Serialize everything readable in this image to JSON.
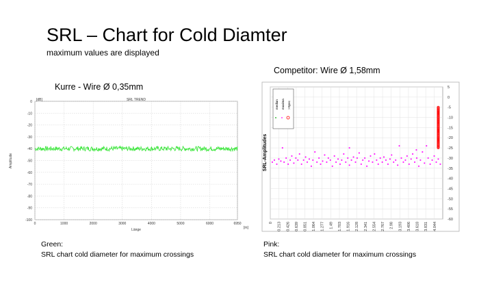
{
  "slide": {
    "title": "SRL – Chart for Cold Diamter",
    "subtitle": "maximum values are displayed"
  },
  "left_panel": {
    "title": "Kurre - Wire Ø 0,35mm",
    "caption_line1": "Green:",
    "caption_line2": "SRL chart cold diameter for maximum crossings"
  },
  "right_panel": {
    "title": "Competitor: Wire Ø 1,58mm",
    "caption_line1": "Pink:",
    "caption_line2": "SRL chart cold diameter for maximum crossings"
  },
  "colors": {
    "green_series": "#39e639",
    "pink_series": "#ff00ff",
    "red_spec": "#ff0000",
    "grid": "#cfcfcf"
  },
  "chart_data": [
    {
      "type": "line",
      "title": "SRL TREND",
      "xlabel": "Länge",
      "ylabel": "Amplitude",
      "y_unit_label": "[dB]",
      "x_unit_label": "[m]",
      "xlim": [
        0,
        6950
      ],
      "ylim": [
        -100,
        0
      ],
      "x_ticks": [
        "0",
        "1000",
        "2000",
        "3000",
        "4000",
        "5000",
        "6000",
        "6950"
      ],
      "y_ticks": [
        "0",
        "-10",
        "-20",
        "-30",
        "-40",
        "-50",
        "-60",
        "-70",
        "-80",
        "-90",
        "-100"
      ],
      "grid": true,
      "series": [
        {
          "color": "#39e639",
          "x_range": [
            0,
            6950
          ],
          "values_approx": -40,
          "noise_range": [
            -42,
            -38
          ]
        }
      ]
    },
    {
      "type": "scatter",
      "ylabel": "SRL-Amplitudes",
      "ylim": [
        -60,
        5
      ],
      "y_axis_position": "right",
      "y_ticks": [
        "5",
        "0",
        "-5",
        "-10",
        "-15",
        "-20",
        "-25",
        "-30",
        "-35",
        "-40",
        "-45",
        "-50",
        "-55",
        "-60"
      ],
      "x_ticks": [
        "0",
        "0.213",
        "0.426",
        "0.639",
        "0.851",
        "1.064",
        "1.277",
        "1.49",
        "1.703",
        "1.916",
        "2.128",
        "2.341",
        "2.554",
        "2.767",
        "2.98",
        "3.193",
        "3.406",
        "3.618",
        "3.831",
        "4.044"
      ],
      "xlim": [
        0,
        4.25
      ],
      "grid": true,
      "legend": {
        "position": "top-left",
        "entries": [
          "median",
          "maxima",
          ">Spec"
        ]
      },
      "series": [
        {
          "name": "maxima",
          "color": "#ff00ff",
          "points": [
            [
              0.05,
              -32
            ],
            [
              0.1,
              -31
            ],
            [
              0.16,
              -33
            ],
            [
              0.21,
              -30.5
            ],
            [
              0.26,
              -31.5
            ],
            [
              0.3,
              -25
            ],
            [
              0.34,
              -32
            ],
            [
              0.39,
              -30
            ],
            [
              0.44,
              -33
            ],
            [
              0.49,
              -31
            ],
            [
              0.53,
              -29
            ],
            [
              0.58,
              -32.5
            ],
            [
              0.63,
              -30
            ],
            [
              0.68,
              -31
            ],
            [
              0.72,
              -28
            ],
            [
              0.77,
              -33
            ],
            [
              0.82,
              -31
            ],
            [
              0.87,
              -29.5
            ],
            [
              0.91,
              -32
            ],
            [
              0.96,
              -30.5
            ],
            [
              1.01,
              -34
            ],
            [
              1.05,
              -31
            ],
            [
              1.1,
              -27
            ],
            [
              1.15,
              -32
            ],
            [
              1.2,
              -30
            ],
            [
              1.24,
              -33
            ],
            [
              1.29,
              -31.5
            ],
            [
              1.34,
              -28.5
            ],
            [
              1.39,
              -32
            ],
            [
              1.43,
              -30
            ],
            [
              1.48,
              -31
            ],
            [
              1.53,
              -34
            ],
            [
              1.58,
              -29
            ],
            [
              1.62,
              -32
            ],
            [
              1.67,
              -30.5
            ],
            [
              1.72,
              -33
            ],
            [
              1.76,
              -31
            ],
            [
              1.81,
              -28
            ],
            [
              1.86,
              -32
            ],
            [
              1.91,
              -30
            ],
            [
              1.95,
              -33.5
            ],
            [
              2.0,
              -31
            ],
            [
              2.05,
              -29.5
            ],
            [
              2.1,
              -32
            ],
            [
              2.14,
              -30
            ],
            [
              2.19,
              -27.5
            ],
            [
              2.24,
              -33
            ],
            [
              2.28,
              -31
            ],
            [
              2.33,
              -30
            ],
            [
              2.38,
              -34
            ],
            [
              2.43,
              -31.5
            ],
            [
              2.47,
              -29
            ],
            [
              2.52,
              -32
            ],
            [
              2.57,
              -28
            ],
            [
              2.62,
              -31
            ],
            [
              2.66,
              -33
            ],
            [
              2.71,
              -30
            ],
            [
              2.76,
              -32
            ],
            [
              2.8,
              -29.5
            ],
            [
              2.85,
              -31
            ],
            [
              2.9,
              -33
            ],
            [
              2.95,
              -30.5
            ],
            [
              2.99,
              -28.5
            ],
            [
              3.04,
              -32
            ],
            [
              3.09,
              -31
            ],
            [
              3.14,
              -33.5
            ],
            [
              3.18,
              -24
            ],
            [
              3.23,
              -30
            ],
            [
              3.28,
              -32
            ],
            [
              3.33,
              -31
            ],
            [
              3.37,
              -29
            ],
            [
              3.42,
              -33
            ],
            [
              3.47,
              -30.5
            ],
            [
              3.51,
              -28
            ],
            [
              3.56,
              -32
            ],
            [
              3.61,
              -30
            ],
            [
              3.66,
              -34
            ],
            [
              3.7,
              -31
            ],
            [
              3.75,
              -27
            ],
            [
              3.8,
              -32.5
            ],
            [
              3.85,
              -24
            ],
            [
              3.89,
              -30
            ],
            [
              3.94,
              -33
            ],
            [
              3.99,
              -31
            ],
            [
              4.04,
              -29
            ],
            [
              4.09,
              -32
            ],
            [
              4.14,
              -30.5
            ],
            [
              4.19,
              -33
            ],
            [
              3.6,
              -26
            ],
            [
              1.95,
              -25
            ]
          ]
        },
        {
          "name": ">Spec",
          "color": "#ff0000",
          "x": 4.14,
          "y_range": [
            -25,
            -5
          ]
        }
      ]
    }
  ]
}
